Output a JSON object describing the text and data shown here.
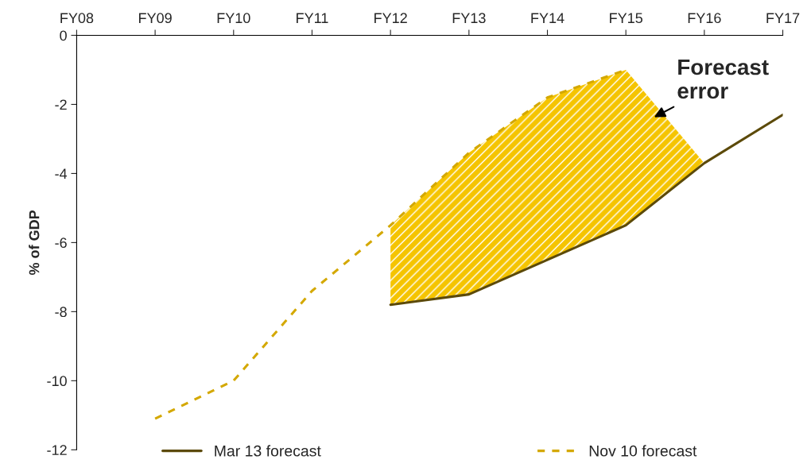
{
  "chart_data": {
    "type": "line",
    "ylabel": "% of GDP",
    "categories": [
      "FY08",
      "FY09",
      "FY10",
      "FY11",
      "FY12",
      "FY13",
      "FY14",
      "FY15",
      "FY16",
      "FY17"
    ],
    "series": [
      {
        "name": "Mar 13 forecast",
        "color": "#5c4a0a",
        "line_style": "solid",
        "values": [
          null,
          null,
          null,
          null,
          -7.8,
          -7.5,
          -6.5,
          -5.5,
          -3.7,
          -2.3
        ],
        "lower": [
          null,
          null,
          null,
          null,
          -7.8,
          -7.5,
          -6.5,
          -5.5,
          -3.7,
          null
        ],
        "upper": [
          null,
          null,
          null,
          null,
          -5.5,
          -3.4,
          -1.8,
          -1.0,
          -3.7,
          null
        ]
      },
      {
        "name": "Nov 10 forecast",
        "color": "#d4a800",
        "line_style": "dashed",
        "values": [
          null,
          -11.1,
          -10.0,
          -7.4,
          -5.5,
          -3.4,
          -1.8,
          -1.0,
          null,
          null
        ]
      }
    ],
    "ylim": [
      -12,
      0
    ],
    "yticks": [
      -12,
      -10,
      -8,
      -6,
      -4,
      -2,
      0
    ],
    "annotations": [
      "Forecast\nerror"
    ],
    "legend": "bottom",
    "grid": false,
    "marker": "none"
  }
}
